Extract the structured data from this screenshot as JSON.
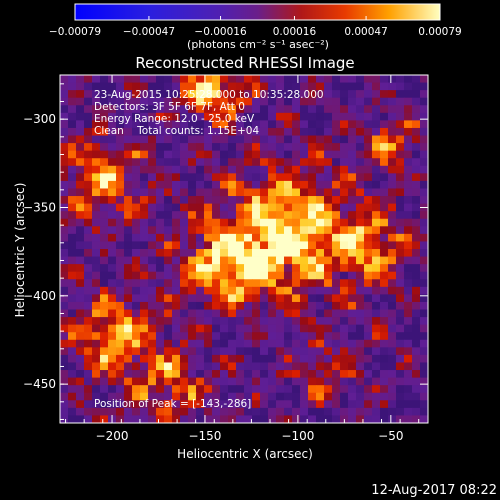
{
  "chart_data": {
    "type": "heatmap",
    "title": "Reconstructed RHESSI Image",
    "xlabel": "Heliocentric X (arcsec)",
    "ylabel": "Heliocentric Y (arcsec)",
    "xlim": [
      -228,
      -30
    ],
    "ylim": [
      -472,
      -275
    ],
    "x_ticks": [
      -200,
      -150,
      -100,
      -50
    ],
    "y_ticks": [
      -300,
      -350,
      -400,
      -450
    ],
    "colorbar": {
      "range": [
        -0.00079,
        0.00079
      ],
      "ticks": [
        -0.00079,
        -0.00047,
        -0.00016,
        0.00016,
        0.00047,
        0.00079
      ],
      "tick_labels": [
        "-0.00079",
        "-0.00047",
        "-0.00016",
        "0.00016",
        "0.00047",
        "0.00079"
      ],
      "unit_label": "(photons cm⁻² s⁻¹ asec⁻²)"
    },
    "info_lines": [
      "23-Aug-2015 10:25:28.000 to 10:35:28.000",
      "Detectors: 3F 5F 6F 7F, Att 0",
      "Energy Range: 12.0 - 25.0 keV",
      "Clean    Total counts: 1.15E+04"
    ],
    "peak_label": "Position of Peak = [-143,-286]",
    "peak": [
      -143,
      -286
    ],
    "timestamp": "12-Aug-2017 08:22"
  }
}
